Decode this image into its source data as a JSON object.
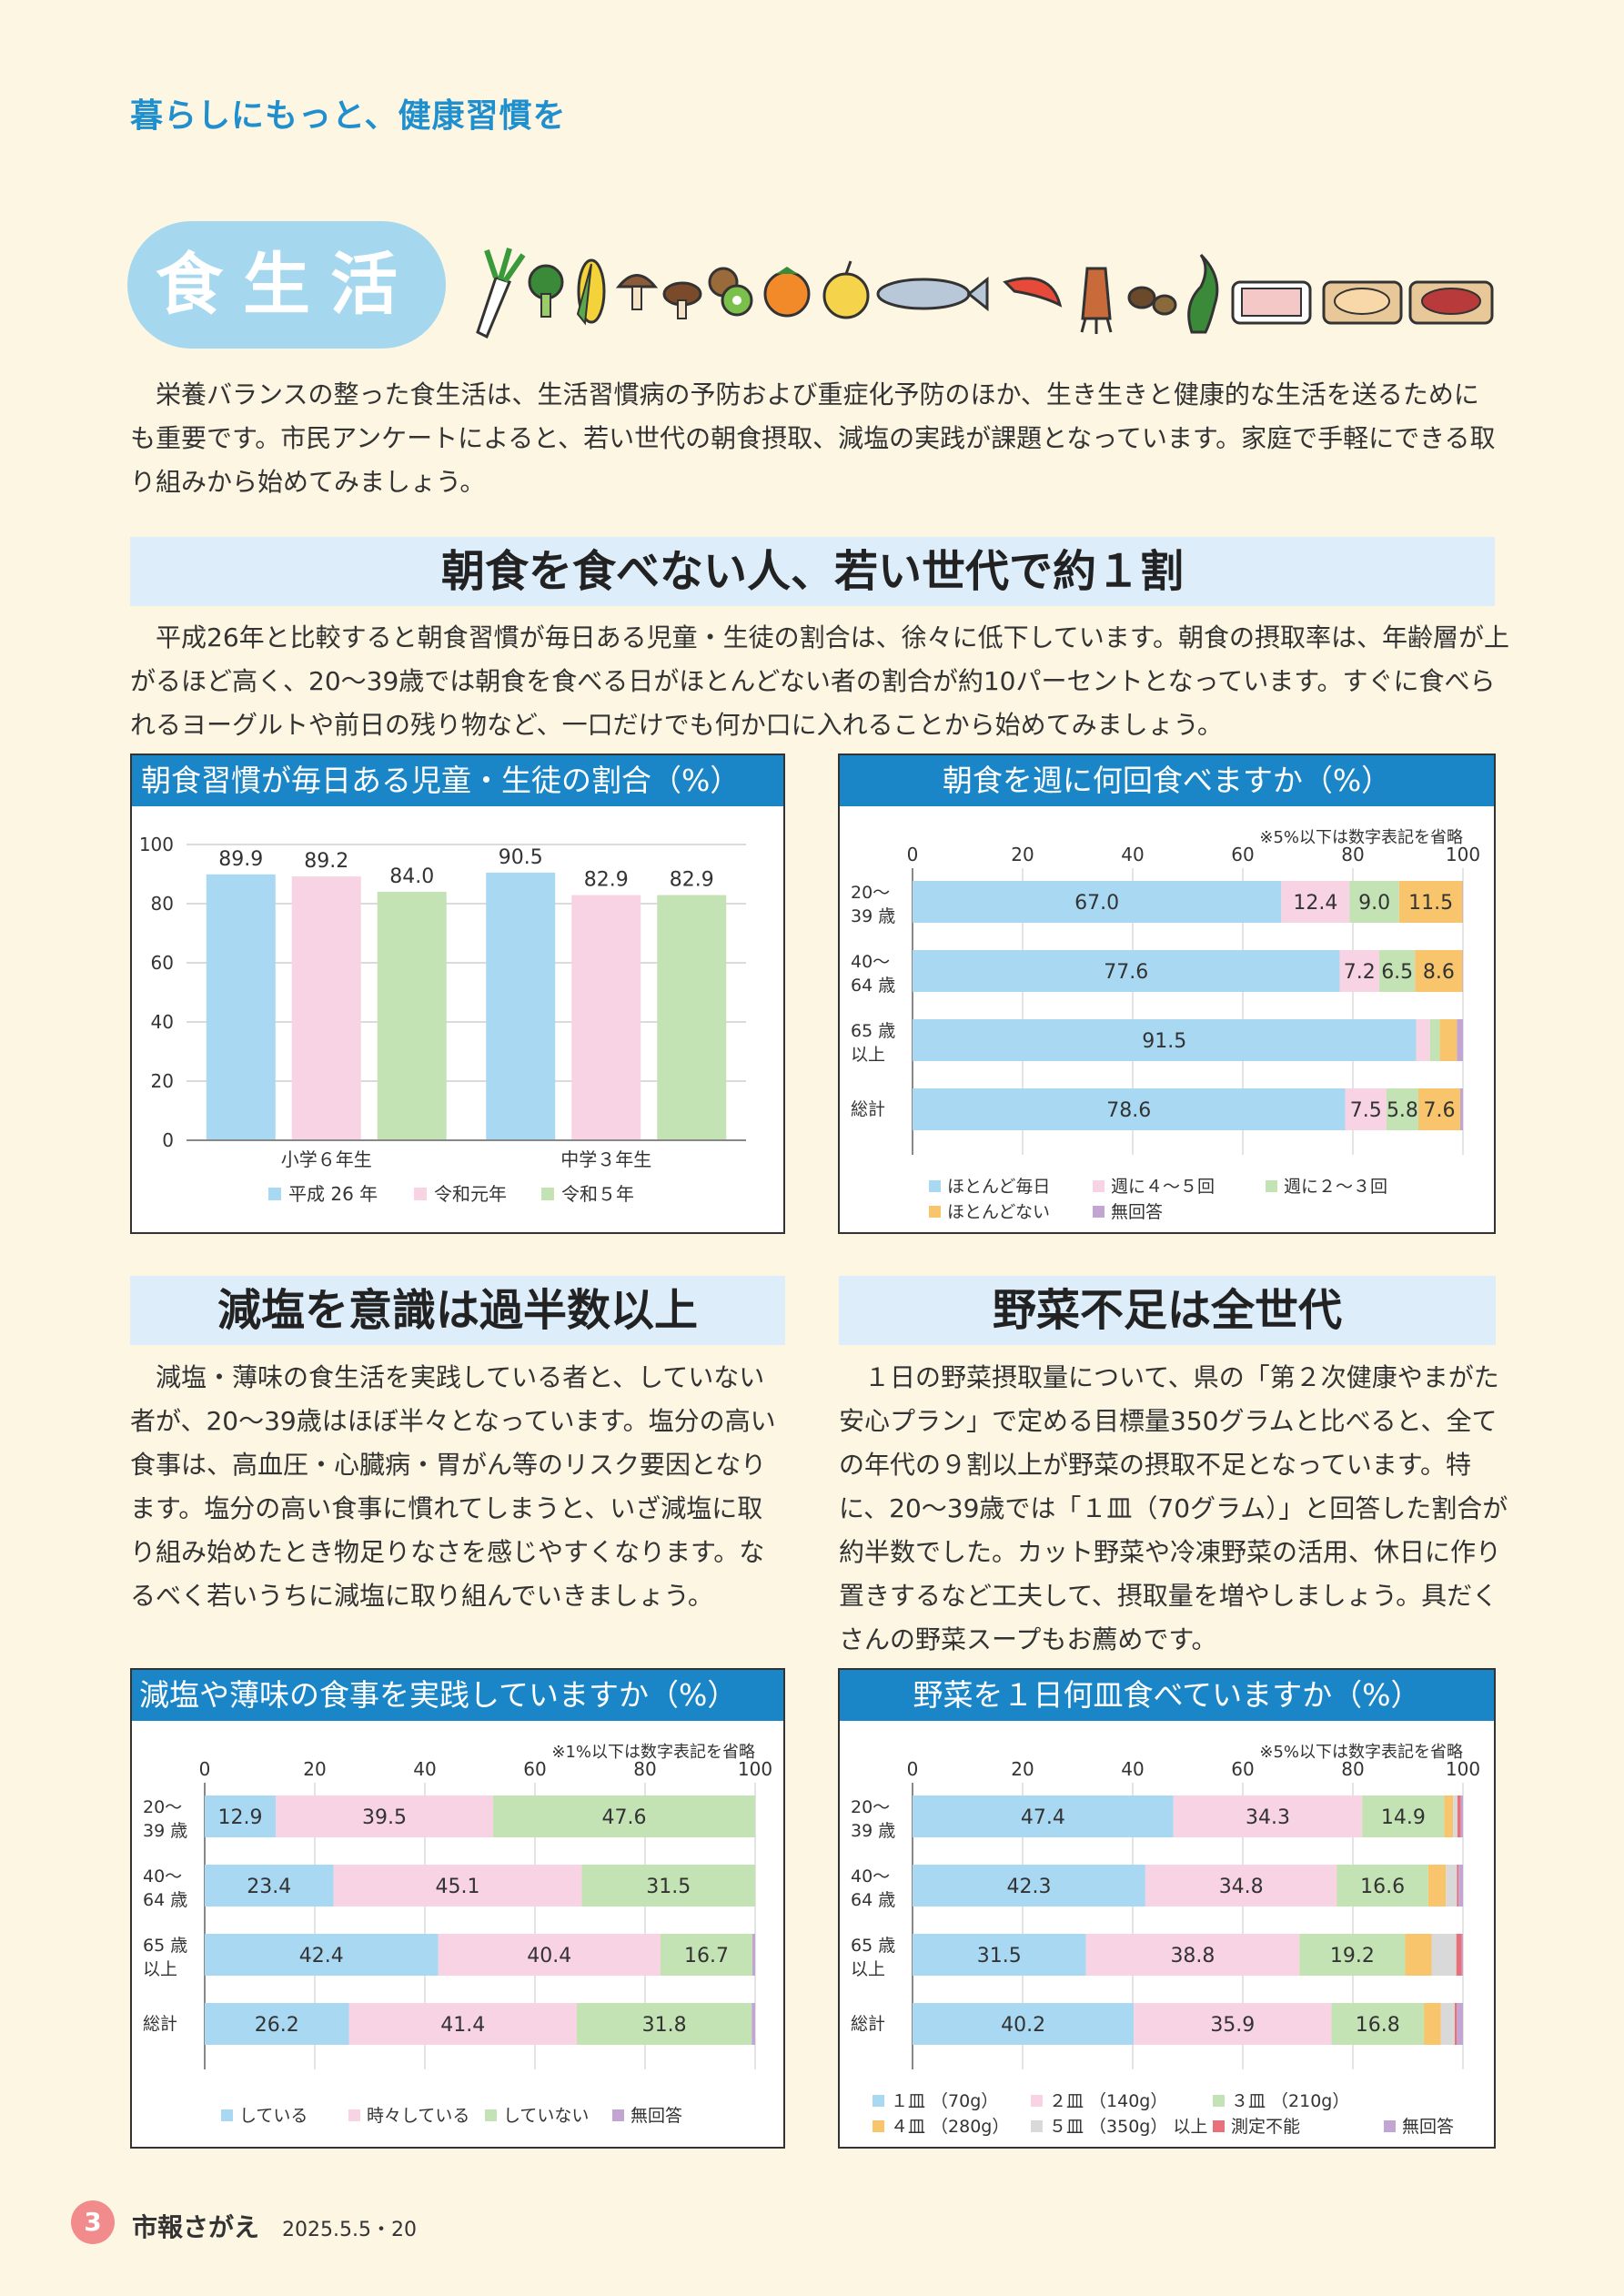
{
  "header": {
    "title": "暮らしにもっと、健康習慣を"
  },
  "section": {
    "label": "食生活",
    "intro": "栄養バランスの整った食生活は、生活習慣病の予防および重症化予防のほか、生き生きと健康的な生活を送るためにも重要です。市民アンケートによると、若い世代の朝食摂取、減塩の実践が課題となっています。家庭で手軽にできる取り組みから始めてみましょう。"
  },
  "breakfast": {
    "heading": "朝食を食べない人、若い世代で約１割",
    "text": "平成26年と比較すると朝食習慣が毎日ある児童・生徒の割合は、徐々に低下しています。朝食の摂取率は、年齢層が上がるほど高く、20〜39歳では朝食を食べる日がほとんどない者の割合が約10パーセントとなっています。すぐに食べられるヨーグルトや前日の残り物など、一口だけでも何か口に入れることから始めてみましょう。"
  },
  "salt": {
    "heading": "減塩を意識は過半数以上",
    "text": "減塩・薄味の食生活を実践している者と、していない者が、20〜39歳はほぼ半々となっています。塩分の高い食事は、高血圧・心臓病・胃がん等のリスク要因となります。塩分の高い食事に慣れてしまうと、いざ減塩に取り組み始めたとき物足りなさを感じやすくなります。なるべく若いうちに減塩に取り組んでいきましょう。"
  },
  "veg": {
    "heading": "野菜不足は全世代",
    "text": "１日の野菜摂取量について、県の「第２次健康やまがた安心プラン」で定める目標量350グラムと比べると、全ての年代の９割以上が野菜の摂取不足となっています。特に、20〜39歳では「１皿（70グラム）」と回答した割合が約半数でした。カット野菜や冷凍野菜の活用、休日に作り置きするなど工夫して、摂取量を増やしましょう。具だくさんの野菜スープもお薦めです。"
  },
  "footer": {
    "page": "3",
    "name": "市報さがえ",
    "date": "2025.5.5・20"
  },
  "icons": [
    "daikon-icon",
    "broccoli-icon",
    "corn-icon",
    "mushroom-icon",
    "shiitake-icon",
    "kiwi-icon",
    "persimmon-icon",
    "pear-icon",
    "fish-icon",
    "shrimp-icon",
    "squid-icon",
    "clam-icon",
    "seaweed-icon",
    "meat-pack-icon",
    "chicken-pack-icon",
    "beef-pack-icon"
  ],
  "chart_data": [
    {
      "type": "bar",
      "title": "朝食習慣が毎日ある児童・生徒の割合（%）",
      "categories": [
        "小学６年生",
        "中学３年生"
      ],
      "series": [
        {
          "name": "平成 26 年",
          "values": [
            89.9,
            90.5
          ],
          "color": "#a9d9f2"
        },
        {
          "name": "令和元年",
          "values": [
            89.2,
            82.9
          ],
          "color": "#f8d3e3"
        },
        {
          "name": "令和５年",
          "values": [
            84.0,
            82.9
          ],
          "color": "#c3e3b5"
        }
      ],
      "ylim": [
        0,
        100
      ],
      "yticks": [
        0,
        20,
        40,
        60,
        80,
        100
      ],
      "grid": true,
      "legend": "bottom"
    },
    {
      "type": "bar",
      "orientation": "horizontal-stacked",
      "title": "朝食を週に何回食べますか（%）",
      "note": "※5%以下は数字表記を省略",
      "categories": [
        [
          "20～",
          "39 歳"
        ],
        [
          "40～",
          "64 歳"
        ],
        [
          "65 歳",
          "以上"
        ],
        [
          "総計"
        ]
      ],
      "series": [
        {
          "name": "ほとんど毎日",
          "values": [
            67.0,
            77.6,
            91.5,
            78.6
          ],
          "color": "#a9d9f2"
        },
        {
          "name": "週に４～５回",
          "values": [
            12.4,
            7.2,
            2.5,
            7.5
          ],
          "color": "#f8d3e3"
        },
        {
          "name": "週に２～３回",
          "values": [
            9.0,
            6.5,
            1.8,
            5.8
          ],
          "color": "#c3e3b5"
        },
        {
          "name": "ほとんどない",
          "values": [
            11.5,
            8.6,
            3.1,
            7.6
          ],
          "color": "#f8c56c"
        },
        {
          "name": "無回答",
          "values": [
            0.1,
            0.1,
            1.1,
            0.5
          ],
          "color": "#c3a5d4"
        }
      ],
      "xlim": [
        0,
        100
      ],
      "xticks": [
        0,
        20,
        40,
        60,
        80,
        100
      ],
      "label_threshold": 5,
      "legend": "bottom"
    },
    {
      "type": "bar",
      "orientation": "horizontal-stacked",
      "title": "減塩や薄味の食事を実践していますか（%）",
      "note": "※1%以下は数字表記を省略",
      "categories": [
        [
          "20～",
          "39 歳"
        ],
        [
          "40～",
          "64 歳"
        ],
        [
          "65 歳",
          "以上"
        ],
        [
          "総計"
        ]
      ],
      "series": [
        {
          "name": "している",
          "values": [
            12.9,
            23.4,
            42.4,
            26.2
          ],
          "color": "#a9d9f2"
        },
        {
          "name": "時々している",
          "values": [
            39.5,
            45.1,
            40.4,
            41.4
          ],
          "color": "#f8d3e3"
        },
        {
          "name": "していない",
          "values": [
            47.6,
            31.5,
            16.7,
            31.8
          ],
          "color": "#c3e3b5"
        },
        {
          "name": "無回答",
          "values": [
            0.0,
            0.0,
            0.5,
            0.6
          ],
          "color": "#c3a5d4"
        }
      ],
      "xlim": [
        0,
        100
      ],
      "xticks": [
        0,
        20,
        40,
        60,
        80,
        100
      ],
      "label_threshold": 1,
      "legend": "bottom"
    },
    {
      "type": "bar",
      "orientation": "horizontal-stacked",
      "title": "野菜を１日何皿食べていますか（%）",
      "note": "※5%以下は数字表記を省略",
      "categories": [
        [
          "20～",
          "39 歳"
        ],
        [
          "40～",
          "64 歳"
        ],
        [
          "65 歳",
          "以上"
        ],
        [
          "総計"
        ]
      ],
      "series": [
        {
          "name": "１皿 （70g）",
          "values": [
            47.4,
            42.3,
            31.5,
            40.2
          ],
          "color": "#a9d9f2"
        },
        {
          "name": "２皿 （140g）",
          "values": [
            34.3,
            34.8,
            38.8,
            35.9
          ],
          "color": "#f8d3e3"
        },
        {
          "name": "３皿 （210g）",
          "values": [
            14.9,
            16.6,
            19.2,
            16.8
          ],
          "color": "#c3e3b5"
        },
        {
          "name": "４皿 （280g）",
          "values": [
            1.6,
            3.2,
            4.8,
            3.1
          ],
          "color": "#f8c56c"
        },
        {
          "name": "５皿 （350g） 以上",
          "values": [
            0.8,
            2.0,
            4.5,
            2.5
          ],
          "color": "#d9d9d9"
        },
        {
          "name": "測定不能",
          "values": [
            0.6,
            0.3,
            1.0,
            0.4
          ],
          "color": "#e8707a"
        },
        {
          "name": "無回答",
          "values": [
            0.4,
            0.8,
            0.2,
            1.1
          ],
          "color": "#c3a5d4"
        }
      ],
      "xlim": [
        0,
        100
      ],
      "xticks": [
        0,
        20,
        40,
        60,
        80,
        100
      ],
      "label_threshold": 5,
      "legend": "bottom"
    }
  ]
}
